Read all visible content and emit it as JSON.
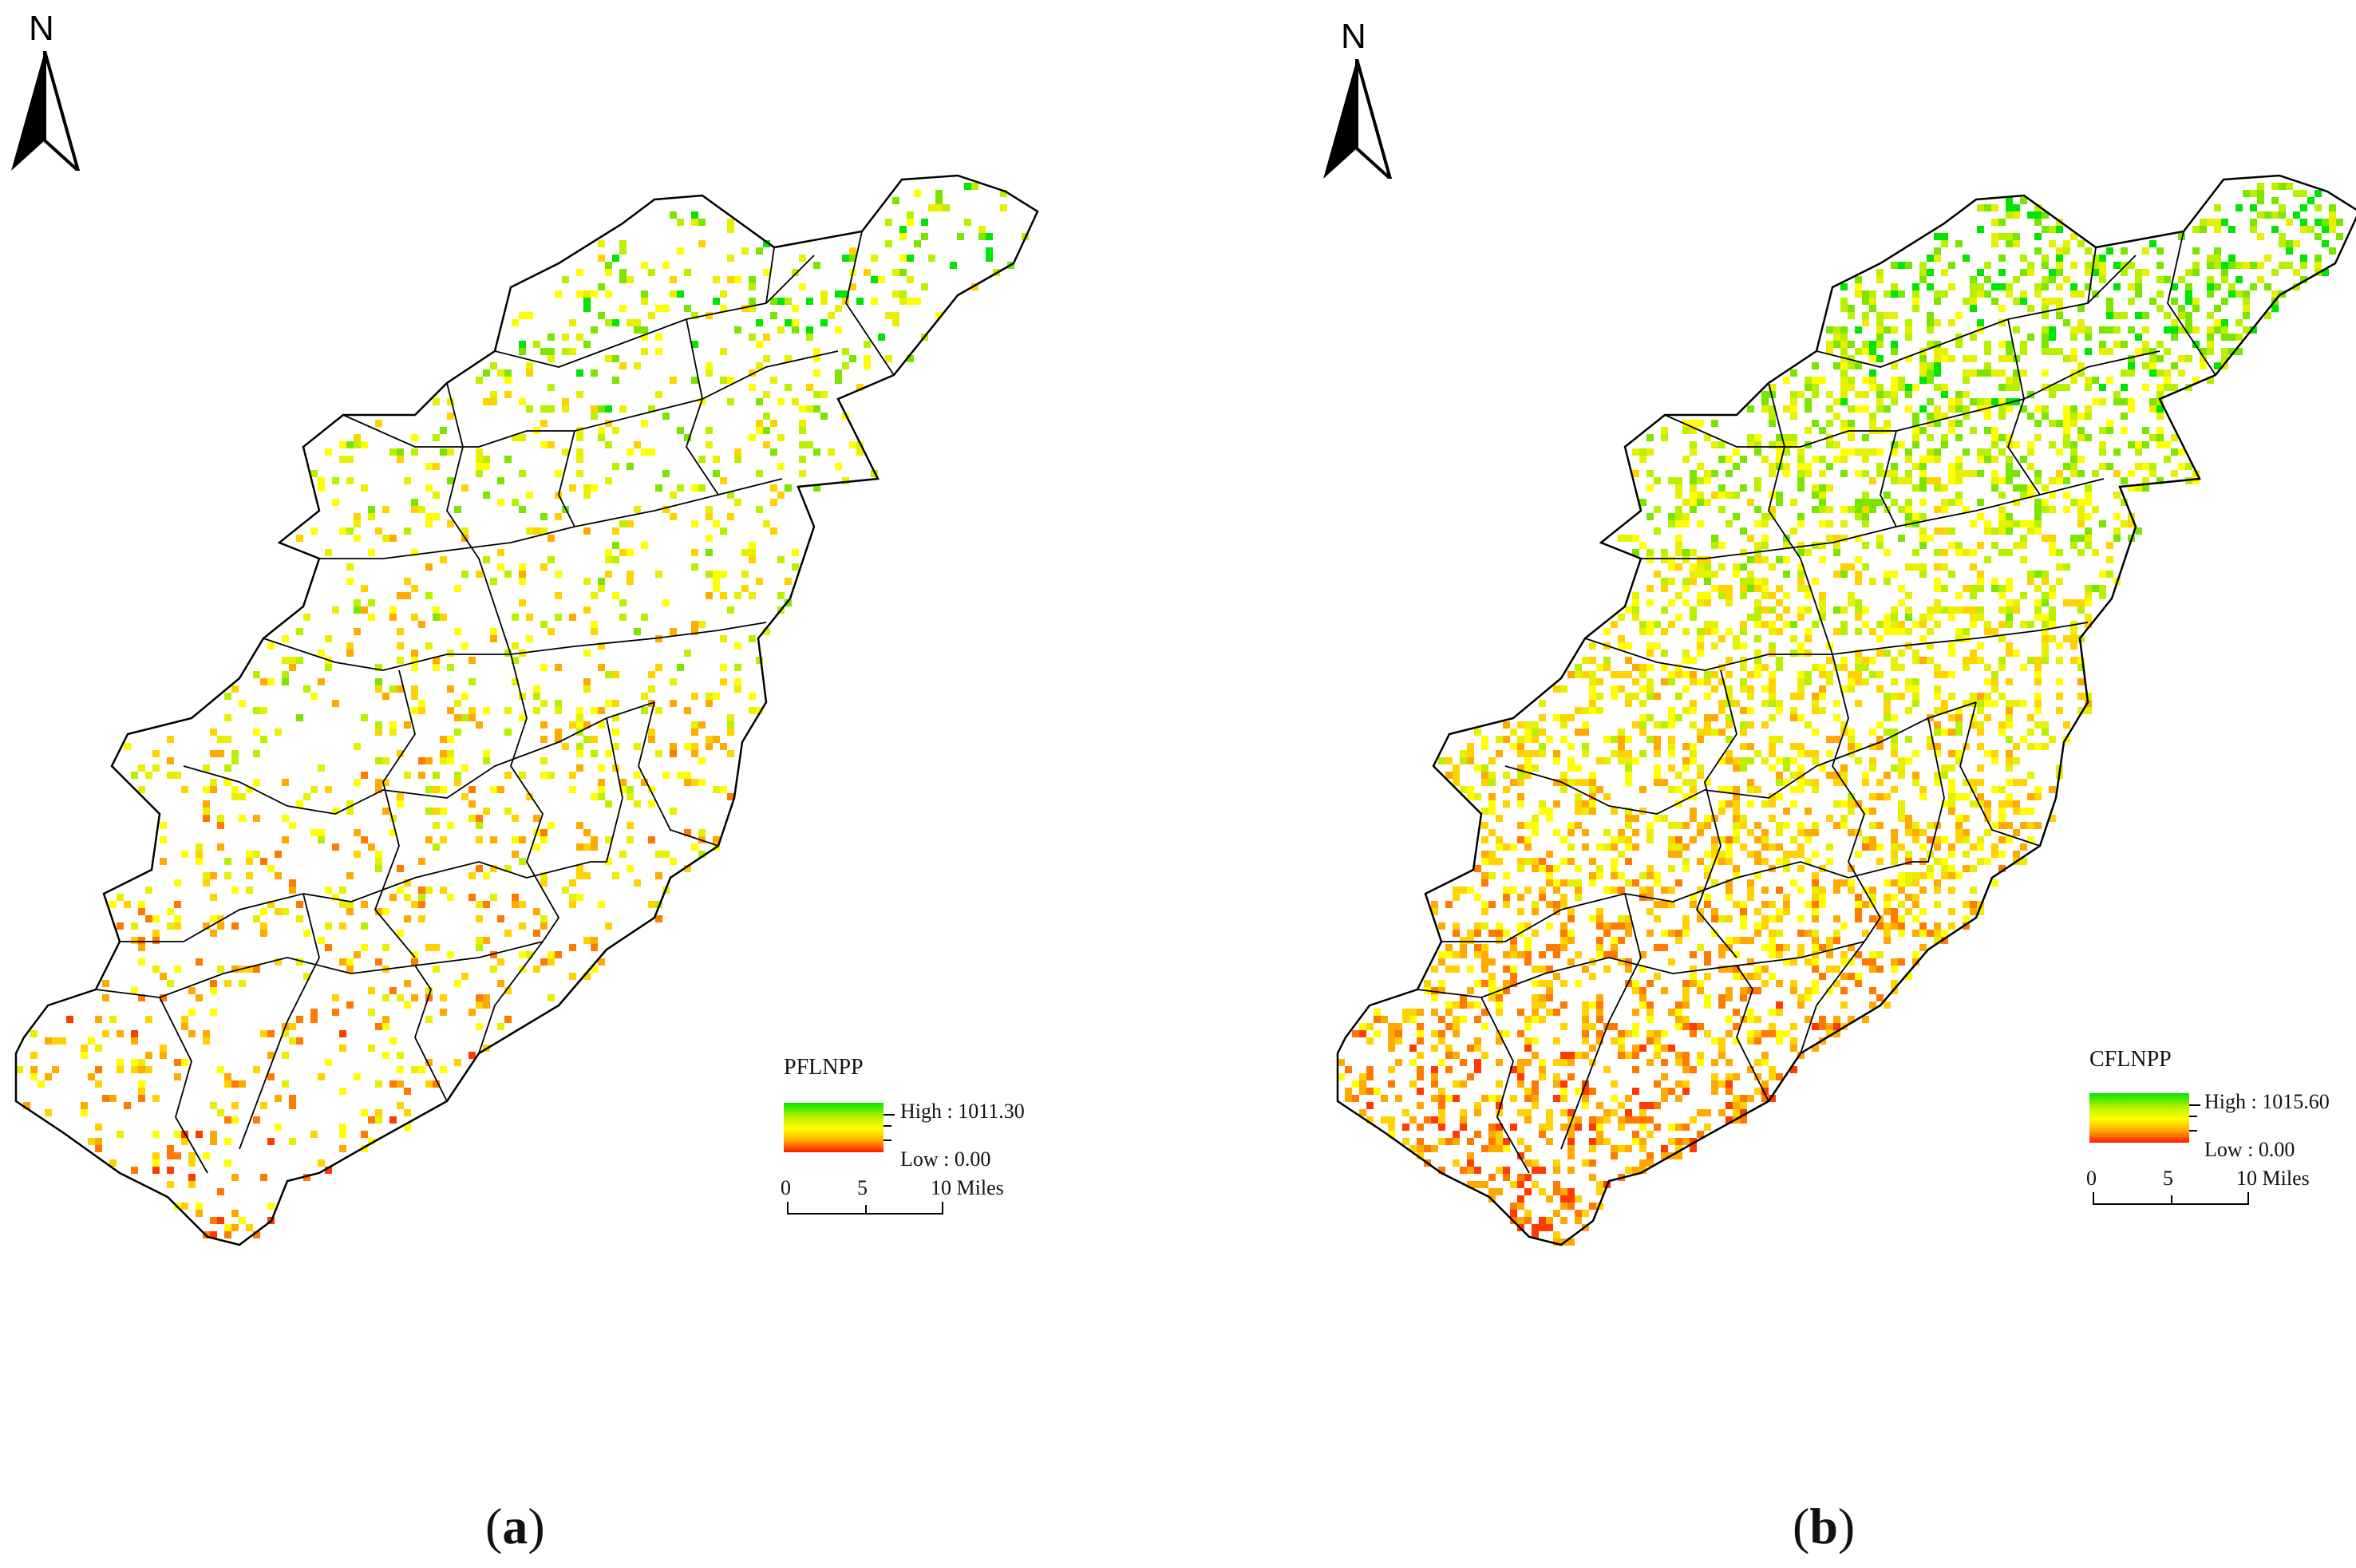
{
  "panels": [
    {
      "id": "a",
      "north_label": "N",
      "legend": {
        "title": "PFLNPP",
        "high_label": "High : 1011.30",
        "low_label": "Low : 0.00",
        "color_high": "#00e600",
        "color_mid": "#ffff00",
        "color_low": "#ff1a00"
      },
      "scale_bar": {
        "ticks": [
          "0",
          "5",
          "10 Miles"
        ]
      },
      "caption_letter": "a",
      "pixel_density": "sparse",
      "dominant_tone": "yellow-green"
    },
    {
      "id": "b",
      "north_label": "N",
      "legend": {
        "title": "CFLNPP",
        "high_label": "High : 1015.60",
        "low_label": "Low : 0.00",
        "color_high": "#00e600",
        "color_mid": "#ffff00",
        "color_low": "#ff1a00"
      },
      "scale_bar": {
        "ticks": [
          "0",
          "5",
          "10 Miles"
        ]
      },
      "caption_letter": "b",
      "pixel_density": "dense",
      "dominant_tone": "orange"
    }
  ],
  "caption_open": "(",
  "caption_close": ")",
  "icons": {
    "north_arrow": "north-arrow-icon"
  }
}
